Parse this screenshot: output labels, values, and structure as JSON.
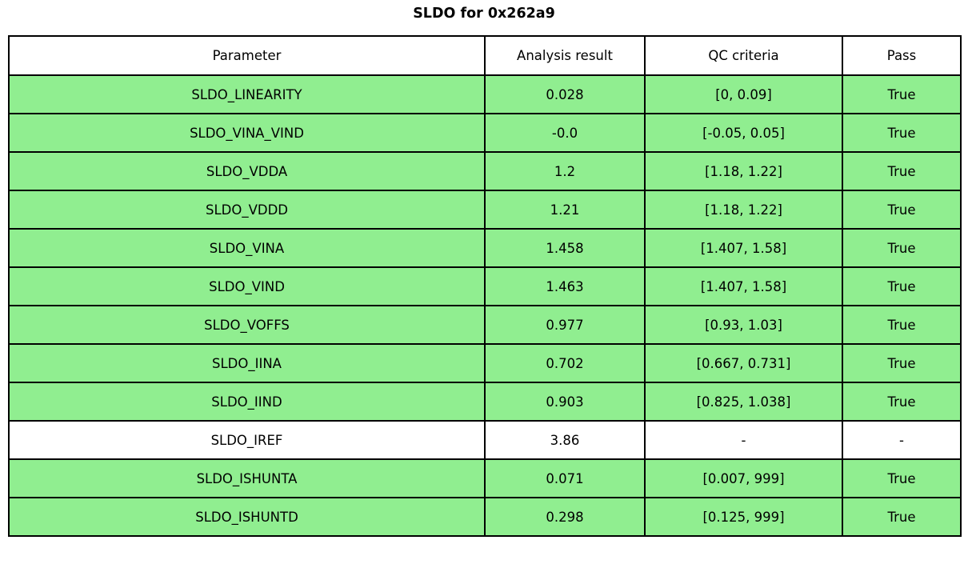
{
  "title": "SLDO for 0x262a9",
  "colors": {
    "pass_row_green": "#90ee90",
    "neutral_row_white": "#ffffff",
    "border_black": "#000000"
  },
  "table": {
    "headers": [
      "Parameter",
      "Analysis result",
      "QC criteria",
      "Pass"
    ],
    "rows": [
      {
        "parameter": "SLDO_LINEARITY",
        "result": "0.028",
        "criteria": "[0, 0.09]",
        "pass": "True",
        "highlighted": true
      },
      {
        "parameter": "SLDO_VINA_VIND",
        "result": "-0.0",
        "criteria": "[-0.05, 0.05]",
        "pass": "True",
        "highlighted": true
      },
      {
        "parameter": "SLDO_VDDA",
        "result": "1.2",
        "criteria": "[1.18, 1.22]",
        "pass": "True",
        "highlighted": true
      },
      {
        "parameter": "SLDO_VDDD",
        "result": "1.21",
        "criteria": "[1.18, 1.22]",
        "pass": "True",
        "highlighted": true
      },
      {
        "parameter": "SLDO_VINA",
        "result": "1.458",
        "criteria": "[1.407, 1.58]",
        "pass": "True",
        "highlighted": true
      },
      {
        "parameter": "SLDO_VIND",
        "result": "1.463",
        "criteria": "[1.407, 1.58]",
        "pass": "True",
        "highlighted": true
      },
      {
        "parameter": "SLDO_VOFFS",
        "result": "0.977",
        "criteria": "[0.93, 1.03]",
        "pass": "True",
        "highlighted": true
      },
      {
        "parameter": "SLDO_IINA",
        "result": "0.702",
        "criteria": "[0.667, 0.731]",
        "pass": "True",
        "highlighted": true
      },
      {
        "parameter": "SLDO_IIND",
        "result": "0.903",
        "criteria": "[0.825, 1.038]",
        "pass": "True",
        "highlighted": true
      },
      {
        "parameter": "SLDO_IREF",
        "result": "3.86",
        "criteria": "-",
        "pass": "-",
        "highlighted": false
      },
      {
        "parameter": "SLDO_ISHUNTA",
        "result": "0.071",
        "criteria": "[0.007, 999]",
        "pass": "True",
        "highlighted": true
      },
      {
        "parameter": "SLDO_ISHUNTD",
        "result": "0.298",
        "criteria": "[0.125, 999]",
        "pass": "True",
        "highlighted": true
      }
    ]
  },
  "chart_data": {
    "type": "table",
    "title": "SLDO for 0x262a9",
    "columns": [
      "Parameter",
      "Analysis result",
      "QC criteria",
      "Pass"
    ],
    "rows": [
      [
        "SLDO_LINEARITY",
        0.028,
        "[0, 0.09]",
        "True"
      ],
      [
        "SLDO_VINA_VIND",
        -0.0,
        "[-0.05, 0.05]",
        "True"
      ],
      [
        "SLDO_VDDA",
        1.2,
        "[1.18, 1.22]",
        "True"
      ],
      [
        "SLDO_VDDD",
        1.21,
        "[1.18, 1.22]",
        "True"
      ],
      [
        "SLDO_VINA",
        1.458,
        "[1.407, 1.58]",
        "True"
      ],
      [
        "SLDO_VIND",
        1.463,
        "[1.407, 1.58]",
        "True"
      ],
      [
        "SLDO_VOFFS",
        0.977,
        "[0.93, 1.03]",
        "True"
      ],
      [
        "SLDO_IINA",
        0.702,
        "[0.667, 0.731]",
        "True"
      ],
      [
        "SLDO_IIND",
        0.903,
        "[0.825, 1.038]",
        "True"
      ],
      [
        "SLDO_IREF",
        3.86,
        "-",
        "-"
      ],
      [
        "SLDO_ISHUNTA",
        0.071,
        "[0.007, 999]",
        "True"
      ],
      [
        "SLDO_ISHUNTD",
        0.298,
        "[0.125, 999]",
        "True"
      ]
    ],
    "row_colors": [
      "#90ee90",
      "#90ee90",
      "#90ee90",
      "#90ee90",
      "#90ee90",
      "#90ee90",
      "#90ee90",
      "#90ee90",
      "#90ee90",
      "#ffffff",
      "#90ee90",
      "#90ee90"
    ],
    "layout": "header row white, pass rows light green, black 2px grid borders, centered text"
  }
}
